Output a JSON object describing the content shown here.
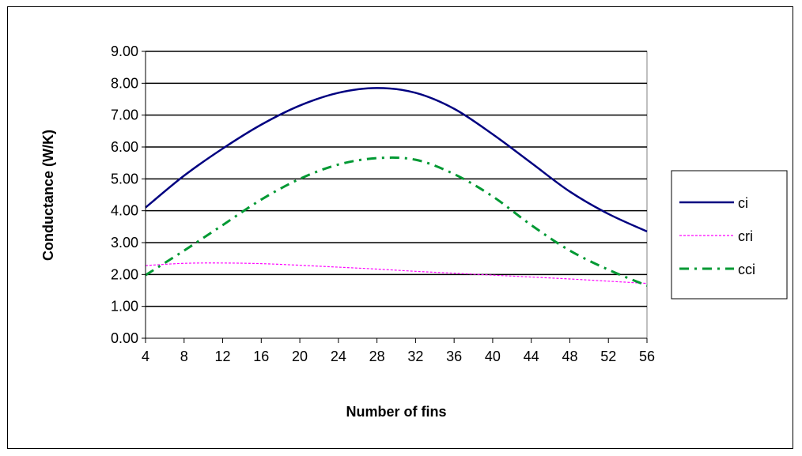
{
  "chart_data": {
    "type": "line",
    "title": "",
    "xlabel": "Number of fins",
    "ylabel": "Conductance  (W/K)",
    "x": [
      4,
      8,
      12,
      16,
      20,
      24,
      28,
      32,
      36,
      40,
      44,
      48,
      52,
      56
    ],
    "x_tick_labels": [
      "4",
      "8",
      "12",
      "16",
      "20",
      "24",
      "28",
      "32",
      "36",
      "40",
      "44",
      "48",
      "52",
      "56"
    ],
    "y_tick_labels": [
      "0.00",
      "1.00",
      "2.00",
      "3.00",
      "4.00",
      "5.00",
      "6.00",
      "7.00",
      "8.00",
      "9.00"
    ],
    "xlim": [
      4,
      56
    ],
    "ylim": [
      0,
      9
    ],
    "grid": "horizontal",
    "legend_position": "right",
    "series": [
      {
        "name": "ci",
        "color": "#000080",
        "style": "solid",
        "values": [
          4.1,
          5.1,
          5.95,
          6.7,
          7.3,
          7.7,
          7.85,
          7.7,
          7.2,
          6.4,
          5.5,
          4.6,
          3.9,
          3.35
        ]
      },
      {
        "name": "cri",
        "color": "#ff00ff",
        "style": "dotted",
        "values": [
          2.28,
          2.35,
          2.36,
          2.34,
          2.29,
          2.23,
          2.17,
          2.1,
          2.04,
          1.98,
          1.92,
          1.86,
          1.79,
          1.72
        ]
      },
      {
        "name": "cci",
        "color": "#009933",
        "style": "dash-dot",
        "values": [
          1.98,
          2.75,
          3.55,
          4.35,
          5.0,
          5.45,
          5.65,
          5.6,
          5.15,
          4.45,
          3.55,
          2.75,
          2.15,
          1.65
        ]
      }
    ]
  }
}
